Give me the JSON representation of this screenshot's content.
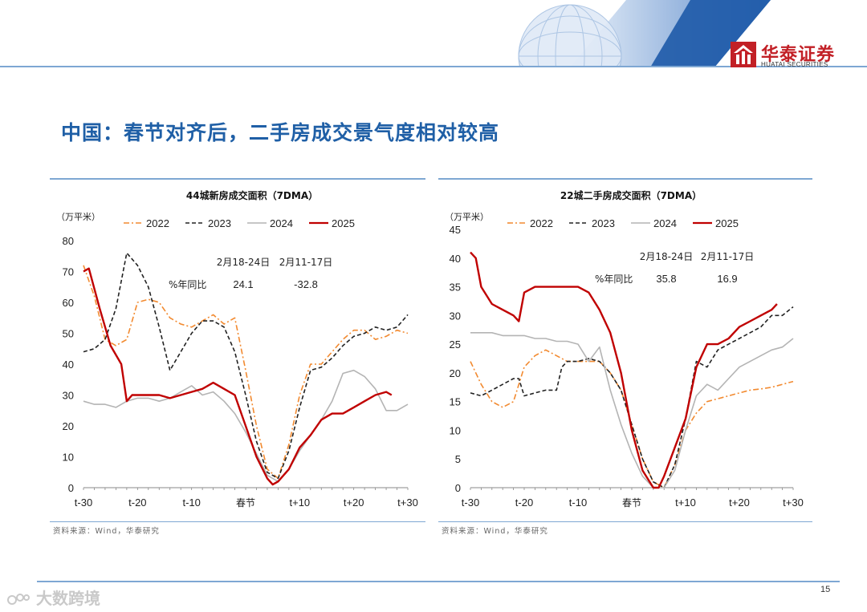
{
  "header": {
    "logo_cn": "华泰证券",
    "logo_en": "HUATAI SECURITIES",
    "colors": {
      "accent": "#1f5fa6",
      "brand": "#c22026",
      "rule": "#7ea7d3"
    }
  },
  "slide_title": "中国：春节对齐后，二手房成交景气度相对较高",
  "footer": {
    "page_number": "15",
    "watermark": "大数跨境"
  },
  "chart_data": [
    {
      "type": "line",
      "title": "44城新房成交面积（7DMA）",
      "unit_label": "（万平米）",
      "ylim": [
        0,
        80
      ],
      "yticks": [
        0,
        10,
        20,
        30,
        40,
        50,
        60,
        70,
        80
      ],
      "xlim": [
        -30,
        30
      ],
      "xticks": [
        {
          "x": -30,
          "label": "t-30"
        },
        {
          "x": -20,
          "label": "t-20"
        },
        {
          "x": -10,
          "label": "t-10"
        },
        {
          "x": 0,
          "label": "春节"
        },
        {
          "x": 10,
          "label": "t+10"
        },
        {
          "x": 20,
          "label": "t+20"
        },
        {
          "x": 30,
          "label": "t+30"
        }
      ],
      "annotation": {
        "header": [
          "2月18-24日",
          "2月11-17日"
        ],
        "row_label": "%年同比",
        "values": [
          "24.1",
          "-32.8"
        ]
      },
      "source": "资料来源：Wind，华泰研究",
      "series": [
        {
          "name": "2022",
          "color": "#f28a30",
          "dash": "7,3,2,3",
          "x": [
            -30,
            -28,
            -26,
            -24,
            -22,
            -20,
            -18,
            -16,
            -14,
            -12,
            -10,
            -8,
            -6,
            -4,
            -2,
            0,
            2,
            4,
            6,
            8,
            10,
            12,
            14,
            16,
            18,
            20,
            22,
            24,
            26,
            28,
            30
          ],
          "y": [
            72,
            62,
            48,
            46,
            48,
            60,
            61,
            60,
            55,
            53,
            52,
            54,
            56,
            53,
            55,
            38,
            20,
            6,
            3,
            14,
            30,
            40,
            40,
            44,
            48,
            51,
            51,
            48,
            49,
            51,
            50
          ]
        },
        {
          "name": "2023",
          "color": "#222222",
          "dash": "5,3",
          "x": [
            -30,
            -28,
            -26,
            -24,
            -22,
            -20,
            -18,
            -16,
            -14,
            -12,
            -10,
            -8,
            -6,
            -4,
            -2,
            0,
            2,
            4,
            6,
            8,
            10,
            12,
            14,
            16,
            18,
            20,
            22,
            24,
            26,
            28,
            30
          ],
          "y": [
            44,
            45,
            48,
            58,
            76,
            72,
            65,
            52,
            38,
            44,
            50,
            54,
            54,
            52,
            44,
            30,
            15,
            5,
            3,
            12,
            26,
            38,
            39,
            42,
            46,
            49,
            50,
            52,
            51,
            52,
            56
          ]
        },
        {
          "name": "2024",
          "color": "#b4b4b4",
          "dash": "",
          "x": [
            -30,
            -28,
            -26,
            -24,
            -22,
            -20,
            -18,
            -16,
            -14,
            -12,
            -10,
            -8,
            -6,
            -4,
            -2,
            0,
            2,
            4,
            6,
            8,
            10,
            12,
            14,
            16,
            18,
            20,
            22,
            24,
            26,
            28,
            30
          ],
          "y": [
            28,
            27,
            27,
            26,
            28,
            29,
            29,
            28,
            29,
            31,
            33,
            30,
            31,
            28,
            24,
            18,
            11,
            4,
            2,
            6,
            12,
            17,
            22,
            28,
            37,
            38,
            36,
            32,
            25,
            25,
            27
          ]
        },
        {
          "name": "2025",
          "color": "#c00000",
          "dash": "",
          "x": [
            -30,
            -29,
            -27,
            -25,
            -23,
            -22,
            -21,
            -20,
            -18,
            -16,
            -14,
            -12,
            -10,
            -8,
            -6,
            -4,
            -2,
            0,
            2,
            4,
            5,
            6,
            8,
            10,
            12,
            14,
            16,
            18,
            20,
            22,
            24,
            26,
            27
          ],
          "y": [
            70,
            71,
            58,
            46,
            40,
            28,
            30,
            30,
            30,
            30,
            29,
            30,
            31,
            32,
            34,
            32,
            30,
            20,
            10,
            3,
            1,
            2,
            6,
            13,
            17,
            22,
            24,
            24,
            26,
            28,
            30,
            31,
            30
          ]
        }
      ]
    },
    {
      "type": "line",
      "title": "22城二手房成交面积（7DMA）",
      "unit_label": "（万平米）",
      "ylim": [
        0,
        45
      ],
      "yticks": [
        0,
        5,
        10,
        15,
        20,
        25,
        30,
        35,
        40,
        45
      ],
      "xlim": [
        -30,
        30
      ],
      "xticks": [
        {
          "x": -30,
          "label": "t-30"
        },
        {
          "x": -20,
          "label": "t-20"
        },
        {
          "x": -10,
          "label": "t-10"
        },
        {
          "x": 0,
          "label": "春节"
        },
        {
          "x": 10,
          "label": "t+10"
        },
        {
          "x": 20,
          "label": "t+20"
        },
        {
          "x": 30,
          "label": "t+30"
        }
      ],
      "annotation": {
        "header": [
          "2月18-24日",
          "2月11-17日"
        ],
        "row_label": "%年同比",
        "values": [
          "35.8",
          "16.9"
        ]
      },
      "source": "资料来源：Wind，华泰研究",
      "series": [
        {
          "name": "2022",
          "color": "#f28a30",
          "dash": "7,3,2,3",
          "x": [
            -30,
            -28,
            -26,
            -24,
            -22,
            -20,
            -18,
            -16,
            -14,
            -12,
            -10,
            -8,
            -6,
            -4,
            -2,
            0,
            2,
            4,
            6,
            8,
            10,
            12,
            14,
            16,
            18,
            20,
            22,
            24,
            26,
            28,
            30
          ],
          "y": [
            22,
            18,
            15,
            14,
            15,
            21,
            23,
            24,
            23,
            22,
            22,
            22,
            22,
            20,
            17,
            11,
            5,
            1,
            0,
            4,
            10,
            13,
            15,
            15.5,
            16,
            16.5,
            17,
            17.2,
            17.5,
            18,
            18.5
          ]
        },
        {
          "name": "2023",
          "color": "#222222",
          "dash": "5,3",
          "x": [
            -30,
            -28,
            -26,
            -24,
            -22,
            -21,
            -20,
            -18,
            -16,
            -14,
            -13,
            -12,
            -10,
            -8,
            -6,
            -4,
            -2,
            0,
            2,
            4,
            6,
            8,
            10,
            12,
            14,
            16,
            18,
            20,
            22,
            24,
            26,
            28,
            30
          ],
          "y": [
            16.5,
            16,
            17,
            18,
            19,
            19,
            16,
            16.5,
            17,
            17,
            21,
            22,
            22,
            22.5,
            22,
            20,
            17,
            11,
            5,
            1,
            0,
            4,
            12,
            22,
            21,
            24,
            25,
            26,
            27,
            28,
            30,
            30,
            31.5
          ]
        },
        {
          "name": "2024",
          "color": "#b4b4b4",
          "dash": "",
          "x": [
            -30,
            -28,
            -26,
            -24,
            -22,
            -20,
            -18,
            -16,
            -14,
            -12,
            -10,
            -8,
            -6,
            -4,
            -2,
            0,
            2,
            4,
            6,
            8,
            10,
            12,
            14,
            16,
            18,
            20,
            22,
            24,
            26,
            28,
            30
          ],
          "y": [
            27,
            27,
            27,
            26.5,
            26.5,
            26.5,
            26,
            26,
            25.5,
            25.5,
            25,
            22,
            24.5,
            17,
            11,
            6,
            2,
            0,
            0,
            3,
            10,
            16,
            18,
            17,
            19,
            21,
            22,
            23,
            24,
            24.5,
            26
          ]
        },
        {
          "name": "2025",
          "color": "#c00000",
          "dash": "",
          "x": [
            -30,
            -29,
            -28,
            -26,
            -24,
            -22,
            -21,
            -20,
            -18,
            -16,
            -14,
            -12,
            -10,
            -8,
            -6,
            -4,
            -2,
            0,
            2,
            4,
            5,
            6,
            8,
            10,
            12,
            14,
            16,
            18,
            20,
            22,
            24,
            26,
            27
          ],
          "y": [
            41,
            40,
            35,
            32,
            31,
            30,
            29,
            34,
            35,
            35,
            35,
            35,
            35,
            34,
            31,
            27,
            20,
            10,
            3,
            0,
            0,
            2,
            7,
            12,
            21,
            25,
            25,
            26,
            28,
            29,
            30,
            31,
            32
          ]
        }
      ]
    }
  ]
}
